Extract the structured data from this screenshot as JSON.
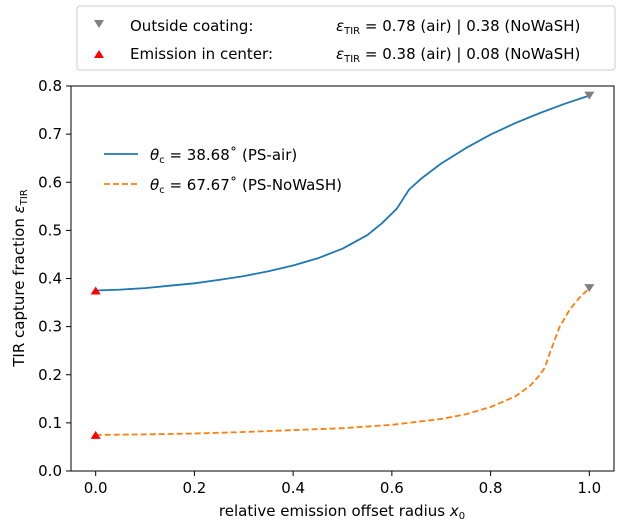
{
  "chart_data": {
    "type": "line",
    "xlabel_main": "relative emission offset radius ",
    "xlabel_var": "x",
    "xlabel_sub": "0",
    "ylabel_main": "TIR capture fraction ",
    "ylabel_var": "ε",
    "ylabel_sub": "TIR",
    "xlim": [
      -0.05,
      1.05
    ],
    "ylim": [
      0.0,
      0.8
    ],
    "x_ticks": [
      0.0,
      0.2,
      0.4,
      0.6,
      0.8,
      1.0
    ],
    "x_tick_labels": [
      "0.0",
      "0.2",
      "0.4",
      "0.6",
      "0.8",
      "1.0"
    ],
    "y_ticks": [
      0.0,
      0.1,
      0.2,
      0.3,
      0.4,
      0.5,
      0.6,
      0.7,
      0.8
    ],
    "y_tick_labels": [
      "0.0",
      "0.1",
      "0.2",
      "0.3",
      "0.4",
      "0.5",
      "0.6",
      "0.7",
      "0.8"
    ],
    "grid": false,
    "series": [
      {
        "name": "PS-air",
        "legend_var": "θ",
        "legend_sub": "c",
        "legend_rest": " = 38.68˚ (PS-air)",
        "color": "#1f77b4",
        "dash": "solid",
        "x": [
          0.0,
          0.05,
          0.1,
          0.15,
          0.2,
          0.25,
          0.3,
          0.35,
          0.4,
          0.45,
          0.5,
          0.55,
          0.58,
          0.61,
          0.635,
          0.66,
          0.7,
          0.75,
          0.8,
          0.85,
          0.9,
          0.95,
          1.0
        ],
        "y": [
          0.375,
          0.377,
          0.38,
          0.385,
          0.39,
          0.397,
          0.405,
          0.415,
          0.427,
          0.442,
          0.462,
          0.49,
          0.515,
          0.545,
          0.585,
          0.608,
          0.639,
          0.671,
          0.699,
          0.723,
          0.744,
          0.763,
          0.78
        ]
      },
      {
        "name": "PS-NoWaSH",
        "legend_var": "θ",
        "legend_sub": "c",
        "legend_rest": " = 67.67˚ (PS-NoWaSH)",
        "color": "#ff7f0e",
        "dash": "dashed",
        "x": [
          0.0,
          0.1,
          0.2,
          0.3,
          0.4,
          0.5,
          0.6,
          0.7,
          0.75,
          0.8,
          0.85,
          0.88,
          0.9,
          0.91,
          0.92,
          0.94,
          0.96,
          0.98,
          1.0
        ],
        "y": [
          0.075,
          0.076,
          0.078,
          0.081,
          0.085,
          0.089,
          0.096,
          0.108,
          0.118,
          0.133,
          0.155,
          0.177,
          0.2,
          0.215,
          0.245,
          0.3,
          0.335,
          0.36,
          0.38
        ]
      }
    ],
    "markers": [
      {
        "name": "outside-coating",
        "shape": "triangle-down",
        "color": "#808080",
        "x": 1.0,
        "y": [
          0.78,
          0.38
        ]
      },
      {
        "name": "emission-center",
        "shape": "triangle-up",
        "color": "#ff0000",
        "x": 0.0,
        "y": [
          0.375,
          0.075
        ]
      }
    ],
    "top_legend": [
      {
        "label": "Outside coating:",
        "var": "ε",
        "sub": "TIR",
        "value": " = 0.78 (air) | 0.38 (NoWaSH)",
        "marker": "triangle-down",
        "color": "#808080"
      },
      {
        "label": "Emission in center:",
        "var": "ε",
        "sub": "TIR",
        "value": " = 0.38 (air) | 0.08 (NoWaSH)",
        "marker": "triangle-up",
        "color": "#ff0000"
      }
    ]
  }
}
